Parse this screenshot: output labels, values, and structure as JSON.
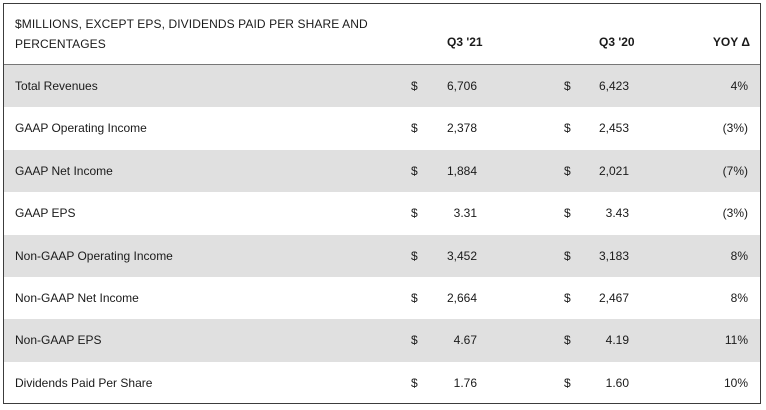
{
  "table": {
    "header": {
      "title": "$MILLIONS, EXCEPT EPS, DIVIDENDS PAID PER SHARE AND PERCENTAGES",
      "col_q3_21": "Q3 '21",
      "col_q3_20": "Q3 '20",
      "col_yoy": "YOY Δ"
    },
    "rows": [
      {
        "label": "Total Revenues",
        "cur1": "$",
        "q3_21": "6,706",
        "cur2": "$",
        "q3_20": "6,423",
        "yoy": "4%"
      },
      {
        "label": "GAAP Operating Income",
        "cur1": "$",
        "q3_21": "2,378",
        "cur2": "$",
        "q3_20": "2,453",
        "yoy": "(3%)"
      },
      {
        "label": "GAAP Net Income",
        "cur1": "$",
        "q3_21": "1,884",
        "cur2": "$",
        "q3_20": "2,021",
        "yoy": "(7%)"
      },
      {
        "label": "GAAP EPS",
        "cur1": "$",
        "q3_21": "3.31",
        "cur2": "$",
        "q3_20": "3.43",
        "yoy": "(3%)"
      },
      {
        "label": "Non-GAAP Operating Income",
        "cur1": "$",
        "q3_21": "3,452",
        "cur2": "$",
        "q3_20": "3,183",
        "yoy": "8%"
      },
      {
        "label": "Non-GAAP Net Income",
        "cur1": "$",
        "q3_21": "2,664",
        "cur2": "$",
        "q3_20": "2,467",
        "yoy": "8%"
      },
      {
        "label": "Non-GAAP EPS",
        "cur1": "$",
        "q3_21": "4.67",
        "cur2": "$",
        "q3_20": "4.19",
        "yoy": "11%"
      },
      {
        "label": "Dividends Paid Per Share",
        "cur1": "$",
        "q3_21": "1.76",
        "cur2": "$",
        "q3_20": "1.60",
        "yoy": "10%"
      }
    ]
  },
  "colors": {
    "row_shade": "#e0e0e0",
    "border": "#3c3c3c",
    "text": "#1a1a1a"
  }
}
